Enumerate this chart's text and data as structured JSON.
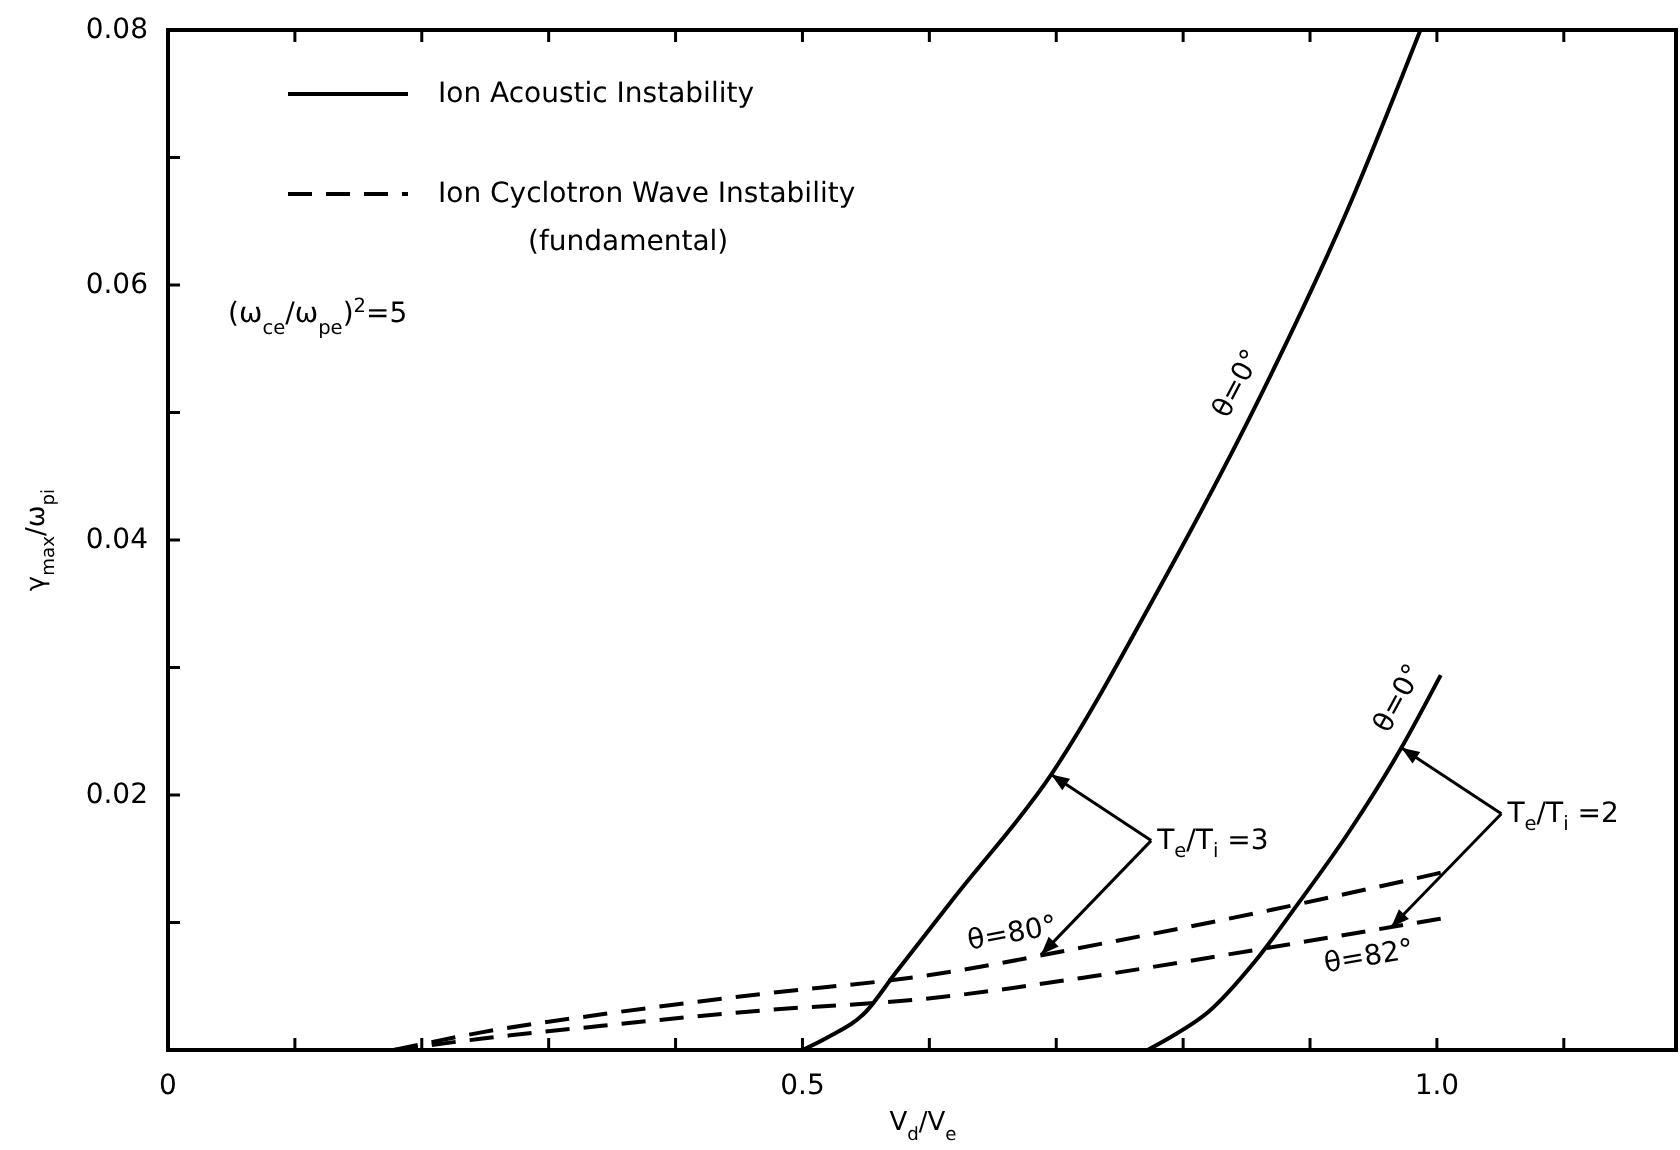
{
  "chart_data": {
    "type": "line",
    "xlabel": "V$_{d}$/V$_{e}$",
    "ylabel": "γ$_{max}$/ω$_{pi}$",
    "xlim": [
      0,
      1.19
    ],
    "ylim": [
      0,
      0.08
    ],
    "xticks": [
      0,
      {
        "value": 0.1,
        "label": null
      },
      {
        "value": 0.2,
        "label": null
      },
      {
        "value": 0.3,
        "label": null
      },
      {
        "value": 0.4,
        "label": null
      },
      0.5,
      {
        "value": 0.6,
        "label": null
      },
      {
        "value": 0.7,
        "label": null
      },
      {
        "value": 0.8,
        "label": null
      },
      {
        "value": 0.9,
        "label": null
      },
      {
        "value": 1,
        "label": "1.0"
      },
      {
        "value": 1.1,
        "label": null
      }
    ],
    "yticks": [
      {
        "value": 0.01,
        "label": null
      },
      0.02,
      {
        "value": 0.03,
        "label": null
      },
      0.04,
      {
        "value": 0.05,
        "label": null
      },
      0.06,
      {
        "value": 0.07,
        "label": null
      },
      0.08
    ],
    "legend": "top left",
    "series": [
      {
        "name": "Ion Acoustic Instability",
        "color": "#000000",
        "line_style": "solid",
        "x": [
          0.5,
          0.52,
          0.55,
          0.573,
          0.62,
          0.696,
          0.78,
          0.861,
          0.93,
          0.987
        ],
        "values": [
          0,
          0.001,
          0.003,
          0.006,
          0.012,
          0.0216,
          0.036,
          0.0513,
          0.066,
          0.08
        ]
      },
      {
        "name": "Ion Cyclotron Wave Instability (fundamental)",
        "color": "#000000",
        "line_style": "dashed",
        "x": [
          0.178,
          0.248,
          0.342,
          0.468,
          0.595,
          0.739,
          0.87,
          1.003
        ],
        "values": [
          0,
          0.0014,
          0.0028,
          0.0044,
          0.0058,
          0.0084,
          0.011,
          0.0139
        ]
      },
      {
        "color": "#000000",
        "line_style": "solid",
        "x": [
          0.772,
          0.79,
          0.82,
          0.857,
          0.89,
          0.93,
          0.972,
          1.003
        ],
        "values": [
          0,
          0.001,
          0.003,
          0.007,
          0.0114,
          0.017,
          0.0237,
          0.0294
        ]
      },
      {
        "color": "#000000",
        "line_style": "dashed",
        "x": [
          0.178,
          0.248,
          0.342,
          0.468,
          0.595,
          0.73,
          0.866,
          1.003
        ],
        "values": [
          0,
          0.0009,
          0.0019,
          0.0031,
          0.004,
          0.0058,
          0.008,
          0.0103
        ]
      }
    ],
    "annotations": [
      "(ω$_{ce}$/ω$_{pe}$)$^{2}$=5",
      {
        "text": "θ=0°",
        "x": 0.861,
        "y": 0.0513
      },
      {
        "text": "θ=0°",
        "x": 0.988,
        "y": 0.0266
      },
      {
        "text": "θ=80°",
        "x": 0.669,
        "y": 0.0071
      },
      {
        "text": "θ=82°",
        "x": 0.943,
        "y": 0.0093
      },
      {
        "text": "T$_{e}$/T$_{i}$ =3",
        "x": 0.696,
        "y": 0.0216
      },
      {
        "text": "T$_{e}$/T$_{i}$ =2",
        "x": 0.972,
        "y": 0.0237
      }
    ]
  }
}
